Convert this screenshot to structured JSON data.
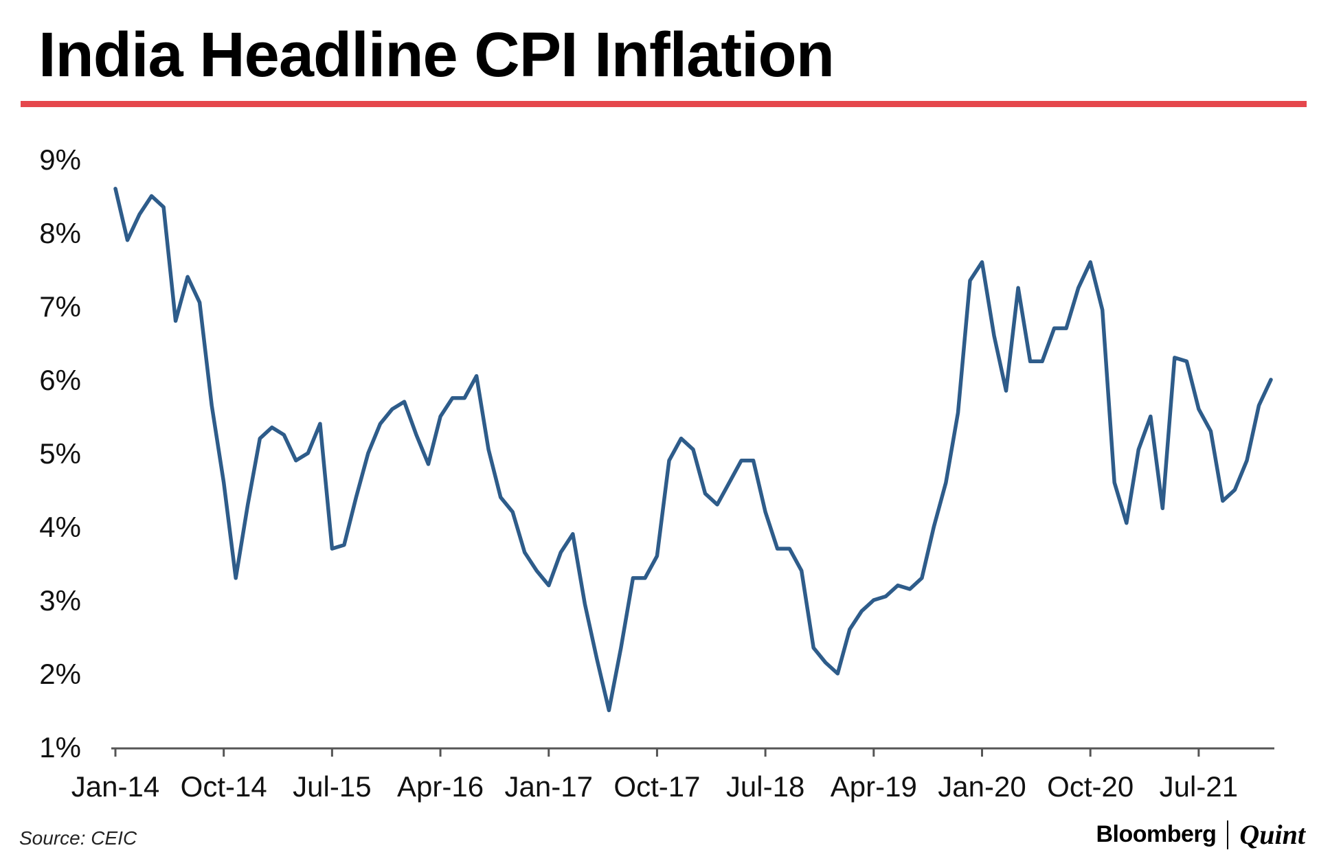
{
  "header": {
    "title": "India Headline CPI Inflation",
    "accent_color": "#e5474c"
  },
  "footer": {
    "source": "Source: CEIC",
    "logo_brand": "Bloomberg",
    "logo_suffix": "Quint"
  },
  "chart_data": {
    "type": "line",
    "title": "India Headline CPI Inflation",
    "xlabel": "",
    "ylabel": "",
    "ylim": [
      1,
      9
    ],
    "y_ticks": [
      "1%",
      "2%",
      "3%",
      "4%",
      "5%",
      "6%",
      "7%",
      "8%",
      "9%"
    ],
    "x_tick_labels": [
      "Jan-14",
      "Oct-14",
      "Jul-15",
      "Apr-16",
      "Jan-17",
      "Oct-17",
      "Jul-18",
      "Apr-19",
      "Jan-20",
      "Oct-20",
      "Jul-21"
    ],
    "x_tick_months": 9,
    "grid": false,
    "line_color": "#2e5c8a",
    "series": [
      {
        "name": "Headline CPI Inflation (%)",
        "start": "Jan-14",
        "values": [
          8.6,
          7.9,
          8.25,
          8.5,
          8.35,
          6.8,
          7.4,
          7.05,
          5.65,
          4.6,
          3.3,
          4.3,
          5.2,
          5.35,
          5.25,
          4.9,
          5.0,
          5.4,
          3.7,
          3.75,
          4.4,
          5.0,
          5.4,
          5.6,
          5.7,
          5.25,
          4.85,
          5.5,
          5.75,
          5.75,
          6.05,
          5.05,
          4.4,
          4.2,
          3.65,
          3.4,
          3.2,
          3.65,
          3.9,
          2.95,
          2.2,
          1.5,
          2.35,
          3.3,
          3.3,
          3.6,
          4.9,
          5.2,
          5.05,
          4.45,
          4.3,
          4.6,
          4.9,
          4.9,
          4.2,
          3.7,
          3.7,
          3.4,
          2.35,
          2.15,
          2.0,
          2.6,
          2.85,
          3.0,
          3.05,
          3.2,
          3.15,
          3.3,
          4.0,
          4.6,
          5.55,
          7.35,
          7.6,
          6.6,
          5.85,
          7.25,
          6.25,
          6.25,
          6.7,
          6.7,
          7.25,
          7.6,
          6.95,
          4.6,
          4.05,
          5.05,
          5.5,
          4.25,
          6.3,
          6.25,
          5.6,
          5.3,
          4.35,
          4.5,
          4.9,
          5.65,
          6.0
        ]
      }
    ]
  }
}
